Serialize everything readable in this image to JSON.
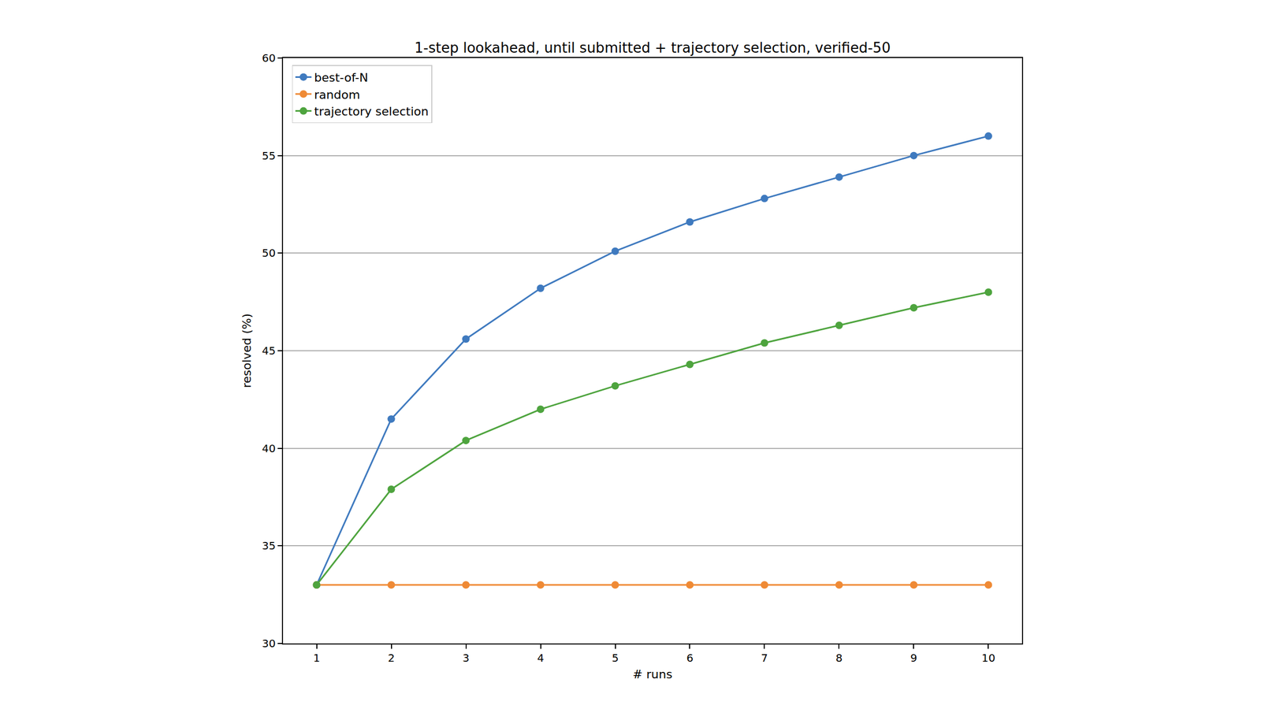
{
  "chart_data": {
    "type": "line",
    "title": "1-step lookahead, until submitted + trajectory selection, verified-50",
    "x_label": "# runs",
    "y_label": "resolved (%)",
    "x": [
      1,
      2,
      3,
      4,
      5,
      6,
      7,
      8,
      9,
      10
    ],
    "series": [
      {
        "name": "best-of-N",
        "color": "#3f7abf",
        "marker": "circle",
        "line_style": "solid",
        "values": [
          33,
          41.5,
          45.6,
          48.2,
          50.1,
          51.6,
          52.8,
          53.9,
          55.0,
          56.0
        ]
      },
      {
        "name": "random",
        "color": "#ef8a35",
        "marker": "circle",
        "line_style": "solid",
        "values": [
          33,
          33,
          33,
          33,
          33,
          33,
          33,
          33,
          33,
          33
        ]
      },
      {
        "name": "trajectory selection",
        "color": "#4ea43e",
        "marker": "circle",
        "line_style": "solid",
        "values": [
          33,
          37.9,
          40.4,
          42.0,
          43.2,
          44.3,
          45.4,
          46.3,
          47.2,
          48.0
        ]
      }
    ],
    "xlim": [
      0.55,
      10.45
    ],
    "xticks": [
      1,
      2,
      3,
      4,
      5,
      6,
      7,
      8,
      9,
      10
    ],
    "ylim": [
      30,
      60
    ],
    "yticks": [
      30,
      35,
      40,
      45,
      50,
      55,
      60
    ],
    "grid": "y",
    "legend": "upper left"
  }
}
